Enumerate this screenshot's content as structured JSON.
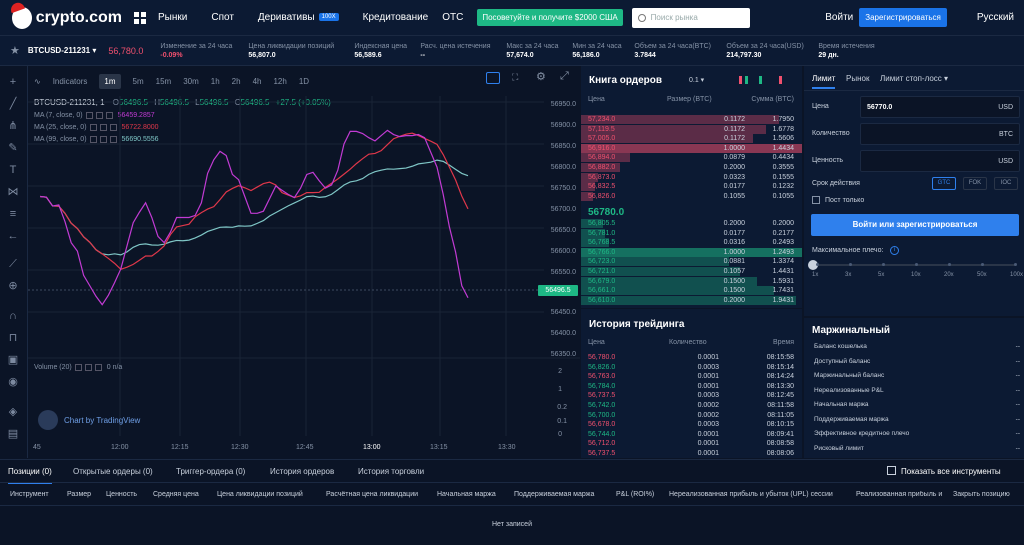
{
  "nav": {
    "logo": "crypto.com",
    "items": [
      "Рынки",
      "Спот",
      "Деривативы",
      "Кредитование",
      "OTC"
    ],
    "badge": "100X",
    "promo": "Посоветуйте и получите $2000 США",
    "search_placeholder": "Поиск рынка",
    "login": "Войти",
    "register": "Зарегистрироваться",
    "language": "Русский"
  },
  "ticker": {
    "symbol": "BTCUSD-211231",
    "price": "56,780.0",
    "stats": [
      {
        "label": "Изменение за 24 часа",
        "value": "-0.09%"
      },
      {
        "label": "Цена ликвидации позиций",
        "value": "56,807.0"
      },
      {
        "label": "Индексная цена",
        "value": "56,589.6"
      },
      {
        "label": "Расч. цена истечения",
        "value": "--"
      },
      {
        "label": "Макс за 24 часа",
        "value": "57,674.0"
      },
      {
        "label": "Мин за 24 часа",
        "value": "56,186.0"
      },
      {
        "label": "Объем за 24 часа(BTC)",
        "value": "3.7844"
      },
      {
        "label": "Объем за 24 часа(USD)",
        "value": "214,797.30"
      },
      {
        "label": "Время истечения",
        "value": "29 дн."
      }
    ]
  },
  "chart": {
    "timeframes": [
      "1m",
      "5m",
      "15m",
      "30m",
      "1h",
      "2h",
      "4h",
      "12h",
      "1D"
    ],
    "indicators_label": "Indicators",
    "ohlc": "BTCUSD-211231, 1",
    "o": "56496.5",
    "h": "56496.5",
    "l": "56496.5",
    "c": "56496.5",
    "change": "+27.5 (+0.05%)",
    "ma": [
      {
        "label": "MA (7, close, 0)",
        "value": "56459.2857",
        "color": "#c23bd4"
      },
      {
        "label": "MA (25, close, 0)",
        "value": "56722.8000",
        "color": "#e0374a"
      },
      {
        "label": "MA (99, close, 0)",
        "value": "56690.5556",
        "color": "#7fc6c6"
      }
    ],
    "volume_label": "Volume (20)",
    "volume_value": "0  n/a",
    "last_price": "56496.5",
    "watermark": "Chart by TradingView",
    "y_ticks": [
      "56950.0",
      "56900.0",
      "56850.0",
      "56800.0",
      "56750.0",
      "56700.0",
      "56650.0",
      "56600.0",
      "56550.0",
      "56450.0",
      "56400.0",
      "56350.0"
    ],
    "vol_ticks": [
      "2",
      "1",
      "0.2",
      "0.1",
      "0"
    ],
    "x_ticks": [
      "45",
      "12:00",
      "12:15",
      "12:30",
      "12:45",
      "13:00",
      "13:15",
      "13:30"
    ]
  },
  "orderbook": {
    "title": "Книга ордеров",
    "precision": "0.1",
    "headers": [
      "Цена",
      "Размер (BTC)",
      "Сумма (BTC)"
    ],
    "asks": [
      [
        "57,234.0",
        "0.1172",
        "1.7950"
      ],
      [
        "57,119.5",
        "0.1172",
        "1.6778"
      ],
      [
        "57,005.0",
        "0.1172",
        "1.5606"
      ],
      [
        "56,916.0",
        "1.0000",
        "1.4434"
      ],
      [
        "56,894.0",
        "0.0879",
        "0.4434"
      ],
      [
        "56,882.0",
        "0.2000",
        "0.3555"
      ],
      [
        "56,873.0",
        "0.0323",
        "0.1555"
      ],
      [
        "56,832.5",
        "0.0177",
        "0.1232"
      ],
      [
        "56,826.0",
        "0.1055",
        "0.1055"
      ]
    ],
    "mid": "56780.0",
    "bids": [
      [
        "56,805.5",
        "0.2000",
        "0.2000"
      ],
      [
        "56,781.0",
        "0.0177",
        "0.2177"
      ],
      [
        "56,768.5",
        "0.0316",
        "0.2493"
      ],
      [
        "56,766.0",
        "1.0000",
        "1.2493"
      ],
      [
        "56,723.0",
        "0.0881",
        "1.3374"
      ],
      [
        "56,721.0",
        "0.1057",
        "1.4431"
      ],
      [
        "56,679.0",
        "0.1500",
        "1.5931"
      ],
      [
        "56,661.0",
        "0.1500",
        "1.7431"
      ],
      [
        "56,610.0",
        "0.2000",
        "1.9431"
      ]
    ]
  },
  "trades": {
    "title": "История трейдинга",
    "headers": [
      "Цена",
      "Количество",
      "Время"
    ],
    "rows": [
      [
        "56,780.0",
        "0.0001",
        "08:15:58",
        "r"
      ],
      [
        "56,826.0",
        "0.0003",
        "08:15:14",
        "g"
      ],
      [
        "56,763.0",
        "0.0001",
        "08:14:24",
        "r"
      ],
      [
        "56,784.0",
        "0.0001",
        "08:13:30",
        "g"
      ],
      [
        "56,737.5",
        "0.0003",
        "08:12:45",
        "r"
      ],
      [
        "56,742.0",
        "0.0002",
        "08:11:58",
        "g"
      ],
      [
        "56,700.0",
        "0.0002",
        "08:11:05",
        "g"
      ],
      [
        "56,678.0",
        "0.0003",
        "08:10:15",
        "r"
      ],
      [
        "56,744.0",
        "0.0001",
        "08:09:41",
        "g"
      ],
      [
        "56,712.0",
        "0.0001",
        "08:08:58",
        "r"
      ],
      [
        "56,737.5",
        "0.0001",
        "08:08:06",
        "r"
      ]
    ]
  },
  "form": {
    "tabs": [
      "Лимит",
      "Рынок",
      "Лимит стоп-лосс"
    ],
    "price_label": "Цена",
    "price": "56770.0",
    "price_unit": "USD",
    "qty_label": "Количество",
    "qty_unit": "BTC",
    "value_label": "Ценность",
    "value_unit": "USD",
    "tif_label": "Срок действия",
    "tif": [
      "GTC",
      "FOK",
      "IOC"
    ],
    "post_only": "Пост только",
    "submit": "Войти или зарегистрироваться",
    "leverage_label": "Максимальное плечо:",
    "leverage_ticks": [
      "1x",
      "3x",
      "5x",
      "10x",
      "20x",
      "50x",
      "100x"
    ]
  },
  "margin": {
    "title": "Маржинальный",
    "rows": [
      "Баланс кошелька",
      "Доступный баланс",
      "Маржинальный баланс",
      "Нереализованные P&L",
      "Начальная маржа",
      "Поддерживаемая маржа",
      "Эффективное кредитное плечо",
      "Рисковый лимит"
    ],
    "placeholder": "--"
  },
  "bottom": {
    "tabs": [
      "Позиции (0)",
      "Открытые ордеры (0)",
      "Триггер-ордера (0)",
      "История ордеров",
      "История торговли"
    ],
    "show_all": "Показать все инструменты",
    "columns": [
      "Инструмент",
      "Размер",
      "Ценность",
      "Средняя цена",
      "Цена ликвидации позиций",
      "Расчётная цена ликвидации",
      "Начальная маржа",
      "Поддерживаемая маржа",
      "P&L (ROI%)",
      "Нереализованная прибыль и убыток (UPL) сессии",
      "Реализованная прибыль и",
      "Закрыть позицию"
    ],
    "empty": "Нет записей"
  }
}
